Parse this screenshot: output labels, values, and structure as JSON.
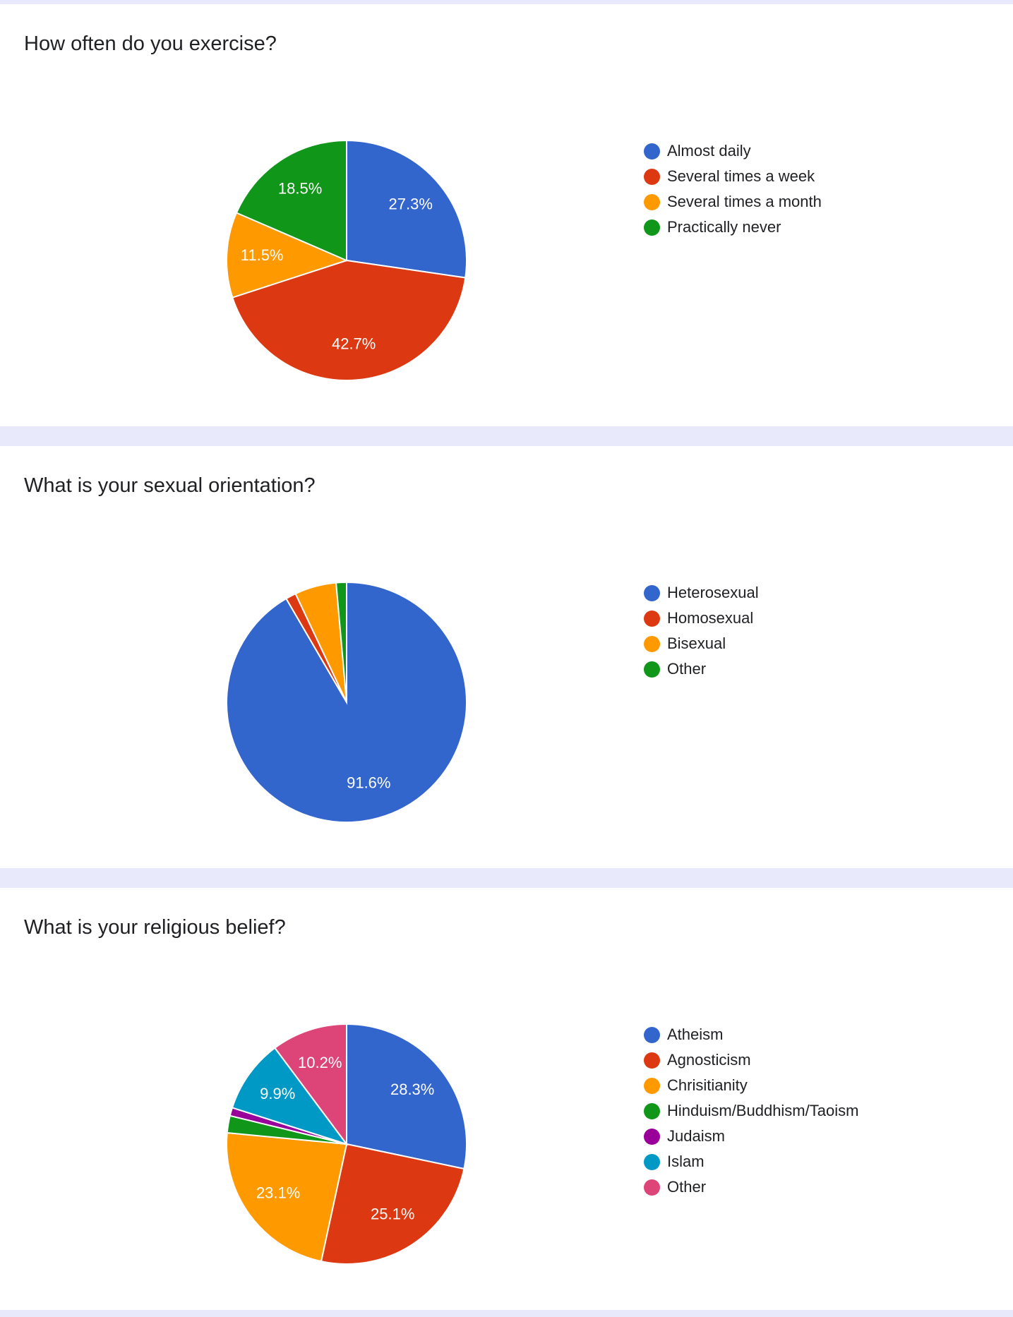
{
  "colors": {
    "blue": "#3366cc",
    "red": "#dc3912",
    "orange": "#ff9900",
    "green": "#109618",
    "purple": "#990099",
    "teal": "#0099c6",
    "pink": "#dd4477"
  },
  "chart_data": [
    {
      "type": "pie",
      "title": "How often do you exercise?",
      "start_angle_deg": 90,
      "direction": "clockwise",
      "slices": [
        {
          "label": "Almost daily",
          "value": 27.3,
          "display": "27.3%",
          "color": "#3366cc"
        },
        {
          "label": "Several times a week",
          "value": 42.7,
          "display": "42.7%",
          "color": "#dc3912"
        },
        {
          "label": "Several times a month",
          "value": 11.5,
          "display": "11.5%",
          "color": "#ff9900"
        },
        {
          "label": "Practically never",
          "value": 18.5,
          "display": "18.5%",
          "color": "#109618"
        }
      ],
      "legend_position": "right"
    },
    {
      "type": "pie",
      "title": "What is your sexual orientation?",
      "start_angle_deg": 90,
      "direction": "clockwise",
      "slices": [
        {
          "label": "Heterosexual",
          "value": 91.6,
          "display": "91.6%",
          "color": "#3366cc"
        },
        {
          "label": "Homosexual",
          "value": 1.4,
          "display": "",
          "color": "#dc3912"
        },
        {
          "label": "Bisexual",
          "value": 5.6,
          "display": "",
          "color": "#ff9900"
        },
        {
          "label": "Other",
          "value": 1.4,
          "display": "",
          "color": "#109618"
        }
      ],
      "legend_position": "right"
    },
    {
      "type": "pie",
      "title": "What is your religious belief?",
      "start_angle_deg": 90,
      "direction": "clockwise",
      "slices": [
        {
          "label": "Atheism",
          "value": 28.3,
          "display": "28.3%",
          "color": "#3366cc"
        },
        {
          "label": "Agnosticism",
          "value": 25.1,
          "display": "25.1%",
          "color": "#dc3912"
        },
        {
          "label": "Chrisitianity",
          "value": 23.1,
          "display": "23.1%",
          "color": "#ff9900"
        },
        {
          "label": "Hinduism/Buddhism/Taoism",
          "value": 2.3,
          "display": "",
          "color": "#109618"
        },
        {
          "label": "Judaism",
          "value": 1.1,
          "display": "",
          "color": "#990099"
        },
        {
          "label": "Islam",
          "value": 9.9,
          "display": "9.9%",
          "color": "#0099c6"
        },
        {
          "label": "Other",
          "value": 10.2,
          "display": "10.2%",
          "color": "#dd4477"
        }
      ],
      "legend_position": "right"
    }
  ]
}
